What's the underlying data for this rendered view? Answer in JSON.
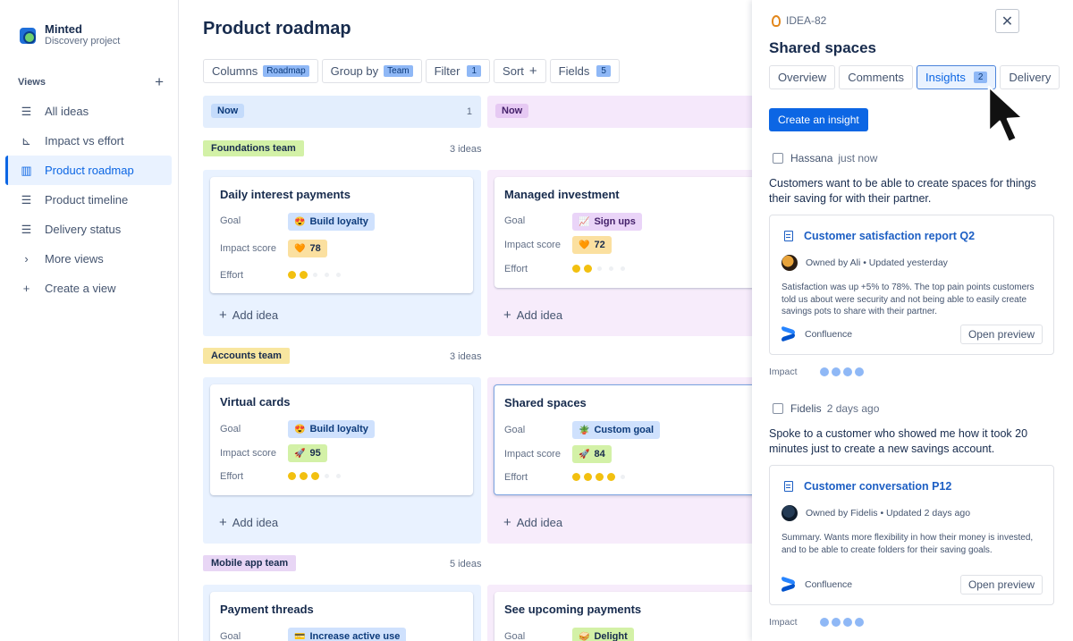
{
  "brand": {
    "name": "Minted",
    "subtitle": "Discovery project"
  },
  "sidebar": {
    "views_heading": "Views",
    "add_view_symbol": "+",
    "items": [
      {
        "label": "All ideas",
        "icon": "list-icon"
      },
      {
        "label": "Impact vs effort",
        "icon": "matrix-icon"
      },
      {
        "label": "Product roadmap",
        "icon": "board-icon",
        "active": true
      },
      {
        "label": "Product timeline",
        "icon": "timeline-icon"
      },
      {
        "label": "Delivery status",
        "icon": "list-icon"
      },
      {
        "label": "More views",
        "icon": "chevron-right-icon"
      },
      {
        "label": "Create a view",
        "icon": "plus-icon"
      }
    ]
  },
  "main": {
    "title": "Product roadmap",
    "toolbar": {
      "columns_label": "Columns",
      "columns_value": "Roadmap",
      "group_label": "Group by",
      "group_value": "Team",
      "filter_label": "Filter",
      "filter_count": "1",
      "sort_label": "Sort",
      "sort_symbol": "+",
      "fields_label": "Fields",
      "fields_count": "5"
    },
    "columns": [
      {
        "label": "Now",
        "count": "1"
      },
      {
        "label": "Now"
      }
    ],
    "add_idea_label": "Add idea",
    "groups": [
      {
        "label": "Foundations team",
        "count": "3 ideas"
      },
      {
        "label": "Accounts team",
        "count": "3 ideas"
      },
      {
        "label": "Mobile app team",
        "count": "5 ideas"
      }
    ],
    "field_labels": {
      "goal": "Goal",
      "impact": "Impact score",
      "effort": "Effort"
    },
    "cards": [
      {
        "title": "Daily interest payments",
        "goal_emoji": "😍",
        "goal": "Build loyalty",
        "impact_emoji": "🧡",
        "impact": "78",
        "effort": 2
      },
      {
        "title": "Managed investment",
        "goal_emoji": "📈",
        "goal": "Sign ups",
        "impact_emoji": "🧡",
        "impact": "72",
        "effort": 2
      },
      {
        "title": "Virtual cards",
        "goal_emoji": "😍",
        "goal": "Build loyalty",
        "impact_emoji": "🚀",
        "impact": "95",
        "effort": 3
      },
      {
        "title": "Shared spaces",
        "goal_emoji": "🪴",
        "goal": "Custom goal",
        "impact_emoji": "🚀",
        "impact": "84",
        "effort": 4
      },
      {
        "title": "Payment threads",
        "goal_emoji": "💳",
        "goal": "Increase active use"
      },
      {
        "title": "See upcoming payments",
        "goal_emoji": "🥪",
        "goal": "Delight"
      }
    ]
  },
  "panel": {
    "key": "IDEA-82",
    "title": "Shared spaces",
    "close_symbol": "✕",
    "tabs": [
      {
        "label": "Overview"
      },
      {
        "label": "Comments"
      },
      {
        "label": "Insights",
        "count": "2",
        "active": true
      },
      {
        "label": "Delivery"
      }
    ],
    "create_button": "Create an insight",
    "insights": [
      {
        "author": "Hassana",
        "time": "just now",
        "text": "Customers want to be able to create spaces for things their saving for with their partner.",
        "card_title": "Customer satisfaction report Q2",
        "owner": "Owned by Ali • Updated yesterday",
        "summary": "Satisfaction was up +5% to 78%. The top pain points customers told us about were security and not being able to easily create savings pots to share with their partner.",
        "source": "Confluence",
        "button": "Open preview",
        "impact_label": "Impact",
        "impact_level": 4
      },
      {
        "author": "Fidelis",
        "time": "2 days ago",
        "text": "Spoke to a customer who showed me how it took 20 minutes just to create a new savings account.",
        "card_title": "Customer conversation P12",
        "owner": "Owned by Fidelis • Updated 2 days ago",
        "summary": "Summary. Wants more flexibility in how their money is invested, and to be able to create folders for their saving goals.",
        "source": "Confluence",
        "button": "Open preview",
        "impact_label": "Impact",
        "impact_level": 4
      }
    ]
  },
  "colors": {
    "accent": "#0c66e4",
    "now_lane_blue": "#e9f2ff",
    "now_lane_purple": "#f7ecfb",
    "foundations": "#d3f1a7",
    "accounts": "#f8e6a0",
    "mobile": "#e8d6f5"
  }
}
